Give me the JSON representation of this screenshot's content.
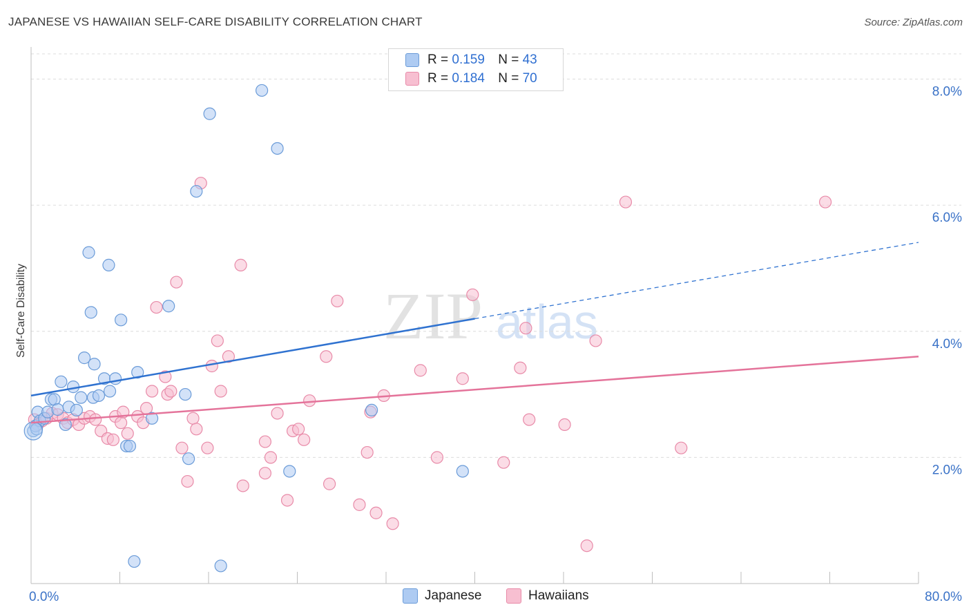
{
  "title": "JAPANESE VS HAWAIIAN SELF-CARE DISABILITY CORRELATION CHART",
  "source": "Source: ZipAtlas.com",
  "watermark": {
    "zip": "ZIP",
    "atlas": "atlas"
  },
  "legend": {
    "japanese": {
      "r_label": "R =",
      "r_value": "0.159",
      "n_label": "N =",
      "n_value": "43"
    },
    "hawaiians": {
      "r_label": "R =",
      "r_value": "0.184",
      "n_label": "N =",
      "n_value": "70"
    }
  },
  "bottom_legend": {
    "japanese": "Japanese",
    "hawaiians": "Hawaiians"
  },
  "colors": {
    "japanese_fill": "#aecbf2",
    "japanese_stroke": "#6a9bd8",
    "japanese_line": "#2f72d0",
    "hawaiian_fill": "#f7bfd1",
    "hawaiian_stroke": "#e88aa8",
    "hawaiian_line": "#e4739a",
    "tick_label": "#3a72c7"
  },
  "chart_data": {
    "type": "scatter",
    "title": "JAPANESE VS HAWAIIAN SELF-CARE DISABILITY CORRELATION CHART",
    "xlabel": "",
    "ylabel": "Self-Care Disability",
    "xlim": [
      0,
      80
    ],
    "ylim": [
      0,
      8.4
    ],
    "x_tick_labels": [
      "0.0%",
      "80.0%"
    ],
    "y_ticks": [
      2,
      4,
      6,
      8
    ],
    "y_tick_labels": [
      "2.0%",
      "4.0%",
      "6.0%",
      "8.0%"
    ],
    "grid": true,
    "legend_position": "top-center",
    "series": [
      {
        "name": "Japanese",
        "points": [
          [
            0.2,
            2.42
          ],
          [
            0.4,
            2.5
          ],
          [
            0.6,
            2.72
          ],
          [
            0.8,
            2.58
          ],
          [
            1.2,
            2.62
          ],
          [
            1.5,
            2.72
          ],
          [
            1.8,
            2.92
          ],
          [
            2.1,
            2.92
          ],
          [
            2.4,
            2.76
          ],
          [
            2.7,
            3.2
          ],
          [
            3.1,
            2.52
          ],
          [
            3.4,
            2.8
          ],
          [
            3.8,
            3.12
          ],
          [
            4.1,
            2.75
          ],
          [
            4.5,
            2.95
          ],
          [
            4.8,
            3.58
          ],
          [
            5.2,
            5.25
          ],
          [
            5.6,
            2.95
          ],
          [
            5.4,
            4.3
          ],
          [
            5.7,
            3.48
          ],
          [
            6.1,
            2.98
          ],
          [
            6.6,
            3.25
          ],
          [
            7.0,
            5.05
          ],
          [
            7.1,
            3.05
          ],
          [
            7.6,
            3.25
          ],
          [
            8.1,
            4.18
          ],
          [
            8.6,
            2.18
          ],
          [
            8.9,
            2.18
          ],
          [
            9.3,
            0.35
          ],
          [
            9.6,
            3.35
          ],
          [
            10.9,
            2.62
          ],
          [
            12.4,
            4.4
          ],
          [
            13.9,
            3.0
          ],
          [
            14.2,
            1.98
          ],
          [
            14.9,
            6.22
          ],
          [
            16.1,
            7.45
          ],
          [
            17.1,
            0.28
          ],
          [
            20.8,
            7.82
          ],
          [
            22.2,
            6.9
          ],
          [
            23.3,
            1.78
          ],
          [
            30.7,
            2.75
          ],
          [
            38.9,
            1.78
          ],
          [
            0.5,
            2.45
          ]
        ]
      },
      {
        "name": "Hawaiians",
        "points": [
          [
            0.3,
            2.6
          ],
          [
            0.6,
            2.52
          ],
          [
            1.0,
            2.58
          ],
          [
            1.4,
            2.62
          ],
          [
            1.9,
            2.7
          ],
          [
            2.4,
            2.68
          ],
          [
            2.9,
            2.62
          ],
          [
            3.3,
            2.55
          ],
          [
            3.8,
            2.6
          ],
          [
            4.3,
            2.52
          ],
          [
            4.8,
            2.62
          ],
          [
            5.3,
            2.65
          ],
          [
            5.8,
            2.6
          ],
          [
            6.3,
            2.42
          ],
          [
            6.9,
            2.3
          ],
          [
            7.4,
            2.28
          ],
          [
            7.6,
            2.65
          ],
          [
            8.1,
            2.55
          ],
          [
            8.3,
            2.72
          ],
          [
            8.7,
            2.38
          ],
          [
            9.6,
            2.65
          ],
          [
            10.1,
            2.55
          ],
          [
            10.4,
            2.78
          ],
          [
            10.9,
            3.05
          ],
          [
            11.3,
            4.38
          ],
          [
            12.1,
            3.28
          ],
          [
            12.3,
            3.0
          ],
          [
            12.6,
            3.05
          ],
          [
            13.1,
            4.78
          ],
          [
            13.6,
            2.15
          ],
          [
            14.1,
            1.62
          ],
          [
            14.6,
            2.62
          ],
          [
            14.9,
            2.45
          ],
          [
            15.3,
            6.35
          ],
          [
            15.9,
            2.15
          ],
          [
            16.3,
            3.45
          ],
          [
            16.8,
            3.85
          ],
          [
            17.1,
            3.05
          ],
          [
            17.8,
            3.6
          ],
          [
            18.9,
            5.05
          ],
          [
            19.1,
            1.55
          ],
          [
            21.1,
            2.25
          ],
          [
            21.1,
            1.75
          ],
          [
            21.6,
            2.0
          ],
          [
            22.2,
            2.7
          ],
          [
            23.1,
            1.32
          ],
          [
            23.6,
            2.42
          ],
          [
            24.1,
            2.45
          ],
          [
            24.6,
            2.28
          ],
          [
            25.1,
            2.9
          ],
          [
            26.6,
            3.6
          ],
          [
            26.9,
            1.58
          ],
          [
            27.6,
            4.48
          ],
          [
            29.6,
            1.25
          ],
          [
            30.3,
            2.08
          ],
          [
            30.6,
            2.72
          ],
          [
            31.1,
            1.12
          ],
          [
            31.8,
            2.98
          ],
          [
            32.6,
            0.95
          ],
          [
            35.1,
            3.38
          ],
          [
            36.6,
            2.0
          ],
          [
            38.9,
            3.25
          ],
          [
            39.8,
            4.58
          ],
          [
            42.6,
            1.92
          ],
          [
            44.1,
            3.42
          ],
          [
            44.6,
            4.05
          ],
          [
            44.9,
            2.6
          ],
          [
            48.1,
            2.52
          ],
          [
            50.1,
            0.6
          ],
          [
            50.9,
            3.85
          ]
        ]
      }
    ],
    "trend_lines": [
      {
        "name": "Japanese",
        "x0": 0,
        "y0": 2.98,
        "x1": 40,
        "y1": 4.2,
        "dashed_to_x": 80,
        "dashed_to_y": 5.41
      },
      {
        "name": "Hawaiians",
        "x0": 0,
        "y0": 2.55,
        "x1": 80,
        "y1": 3.6
      }
    ],
    "extra_points": [
      {
        "series": "Hawaiians",
        "points": [
          [
            53.6,
            6.05
          ],
          [
            58.6,
            2.15
          ],
          [
            71.6,
            6.05
          ]
        ]
      }
    ]
  }
}
